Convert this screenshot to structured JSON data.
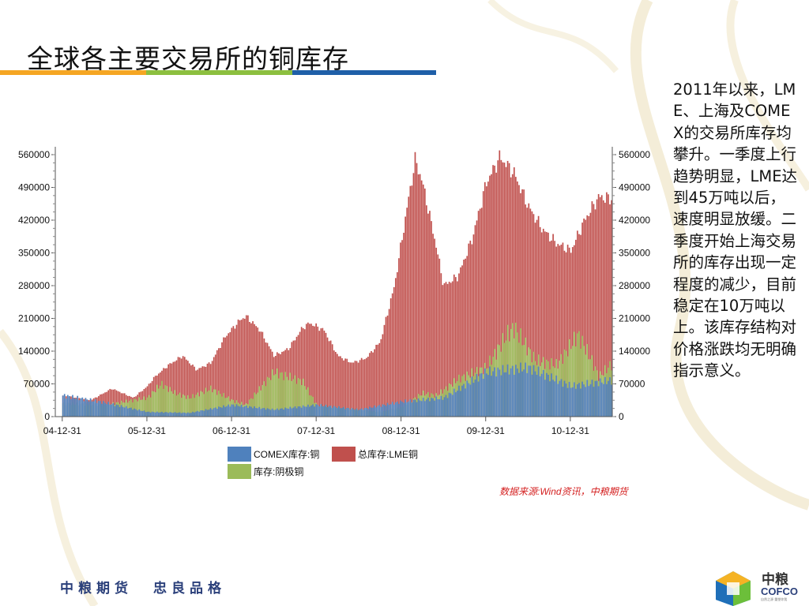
{
  "slide": {
    "title": "全球各主要交易所的铜库存",
    "title_rule_colors": [
      "#f5a623",
      "#8cbf3f",
      "#1f5fa8"
    ],
    "side_text": "2011年以来，LME、上海及COMEX的交易所库存均攀升。一季度上行趋势明显，LME达到45万吨以后，速度明显放缓。二季度开始上海交易所的库存出现一定程度的减少，目前稳定在10万吨以上。该库存结构对价格涨跌均无明确指示意义。",
    "source": "数据来源:Wind资讯，中粮期货",
    "footer_slogan_left": "中粮期货",
    "footer_slogan_right": "忠良品格",
    "logo_cn": "中粮",
    "logo_en": "COFCO",
    "logo_tagline": "自然之源 重塑你我"
  },
  "chart_data": {
    "type": "bar",
    "title": "",
    "xlabel": "",
    "ylabel": "",
    "ylim": [
      0,
      560000
    ],
    "y_ticks": [
      0,
      70000,
      140000,
      210000,
      280000,
      350000,
      420000,
      490000,
      560000
    ],
    "y_tick_labels": [
      "0",
      "70000",
      "140000",
      "210000",
      "280000",
      "350000",
      "420000",
      "490000",
      "560000"
    ],
    "x_tick_labels": [
      "04-12-31",
      "05-12-31",
      "06-12-31",
      "07-12-31",
      "08-12-31",
      "09-12-31",
      "10-12-31"
    ],
    "x_range": [
      "2004-12-01",
      "2011-06-30"
    ],
    "grid": false,
    "legend_position": "bottom",
    "colors": {
      "COMEX": "#4f81bd",
      "LME": "#c0504d",
      "SHFE": "#9bbb59"
    },
    "series": [
      {
        "name": "COMEX库存:铜",
        "key": "COMEX",
        "points": [
          [
            "2004-12-31",
            45000
          ],
          [
            "2005-06-30",
            30000
          ],
          [
            "2005-12-31",
            10000
          ],
          [
            "2006-06-30",
            8000
          ],
          [
            "2006-12-31",
            25000
          ],
          [
            "2007-06-30",
            15000
          ],
          [
            "2007-12-31",
            25000
          ],
          [
            "2008-06-30",
            15000
          ],
          [
            "2008-12-31",
            32000
          ],
          [
            "2009-06-30",
            40000
          ],
          [
            "2009-12-31",
            95000
          ],
          [
            "2010-06-30",
            105000
          ],
          [
            "2010-12-31",
            65000
          ],
          [
            "2011-06-30",
            78000
          ]
        ]
      },
      {
        "name": "总库存:LME铜",
        "key": "LME",
        "points": [
          [
            "2004-12-31",
            45000
          ],
          [
            "2005-04-30",
            35000
          ],
          [
            "2005-07-31",
            60000
          ],
          [
            "2005-10-31",
            40000
          ],
          [
            "2005-12-31",
            65000
          ],
          [
            "2006-01-31",
            85000
          ],
          [
            "2006-03-31",
            110000
          ],
          [
            "2006-05-31",
            130000
          ],
          [
            "2006-07-31",
            100000
          ],
          [
            "2006-09-30",
            115000
          ],
          [
            "2006-11-30",
            170000
          ],
          [
            "2007-01-31",
            205000
          ],
          [
            "2007-02-28",
            215000
          ],
          [
            "2007-04-30",
            185000
          ],
          [
            "2007-06-30",
            130000
          ],
          [
            "2007-08-31",
            145000
          ],
          [
            "2007-10-31",
            190000
          ],
          [
            "2007-11-30",
            200000
          ],
          [
            "2008-01-31",
            185000
          ],
          [
            "2008-03-31",
            130000
          ],
          [
            "2008-05-31",
            115000
          ],
          [
            "2008-07-31",
            125000
          ],
          [
            "2008-09-30",
            160000
          ],
          [
            "2008-11-30",
            280000
          ],
          [
            "2009-01-31",
            470000
          ],
          [
            "2009-02-28",
            550000
          ],
          [
            "2009-03-31",
            500000
          ],
          [
            "2009-05-31",
            360000
          ],
          [
            "2009-06-30",
            280000
          ],
          [
            "2009-08-31",
            300000
          ],
          [
            "2009-10-31",
            380000
          ],
          [
            "2009-12-31",
            500000
          ],
          [
            "2010-02-28",
            555000
          ],
          [
            "2010-04-30",
            520000
          ],
          [
            "2010-06-30",
            450000
          ],
          [
            "2010-08-31",
            400000
          ],
          [
            "2010-10-31",
            370000
          ],
          [
            "2010-12-31",
            355000
          ],
          [
            "2011-02-28",
            420000
          ],
          [
            "2011-04-30",
            470000
          ],
          [
            "2011-06-30",
            465000
          ]
        ]
      },
      {
        "name": "库存:阴极铜",
        "key": "SHFE",
        "points": [
          [
            "2004-12-31",
            28000
          ],
          [
            "2005-06-30",
            25000
          ],
          [
            "2005-12-31",
            40000
          ],
          [
            "2006-02-28",
            70000
          ],
          [
            "2006-04-30",
            50000
          ],
          [
            "2006-06-30",
            40000
          ],
          [
            "2006-09-30",
            60000
          ],
          [
            "2006-12-31",
            35000
          ],
          [
            "2007-02-28",
            25000
          ],
          [
            "2007-06-30",
            95000
          ],
          [
            "2007-10-31",
            75000
          ],
          [
            "2007-12-31",
            25000
          ],
          [
            "2008-06-30",
            15000
          ],
          [
            "2008-09-30",
            10000
          ],
          [
            "2008-12-31",
            20000
          ],
          [
            "2009-03-31",
            50000
          ],
          [
            "2009-05-31",
            45000
          ],
          [
            "2009-08-31",
            80000
          ],
          [
            "2009-12-31",
            105000
          ],
          [
            "2010-03-31",
            175000
          ],
          [
            "2010-04-30",
            190000
          ],
          [
            "2010-07-31",
            120000
          ],
          [
            "2010-10-31",
            110000
          ],
          [
            "2011-01-31",
            175000
          ],
          [
            "2011-03-31",
            120000
          ],
          [
            "2011-04-30",
            85000
          ],
          [
            "2011-06-30",
            115000
          ]
        ]
      }
    ]
  }
}
